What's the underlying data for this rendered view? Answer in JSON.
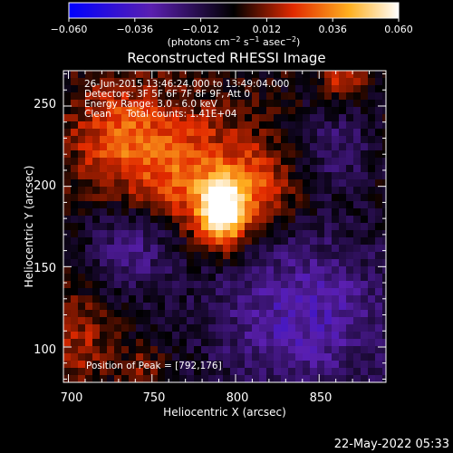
{
  "colorbar": {
    "ticks": [
      "−0.060",
      "−0.036",
      "−0.012",
      "0.012",
      "0.036",
      "0.060"
    ],
    "vmin": -0.06,
    "vmax": 0.06,
    "unit_prefix": "(photons cm",
    "unit_exp1": "−2",
    "unit_mid": " s",
    "unit_exp2": "−1",
    "unit_mid2": " asec",
    "unit_exp3": "−2",
    "unit_suffix": ")",
    "colors": [
      "#0000ff",
      "#6a1bb0",
      "#000000",
      "#e22a00",
      "#ffb020",
      "#ffffff"
    ]
  },
  "chart_data": {
    "type": "heatmap",
    "title": "Reconstructed RHESSI Image",
    "xlabel": "Heliocentric X (arcsec)",
    "ylabel": "Heliocentric Y (arcsec)",
    "xlim": [
      697,
      890
    ],
    "ylim": [
      78,
      272
    ],
    "xticks": [
      "700",
      "750",
      "800",
      "850"
    ],
    "yticks": [
      "100",
      "150",
      "200",
      "250"
    ],
    "peak_position": [
      792,
      176
    ],
    "annotations": [
      "26-Jun-2015 13:46:24.000 to 13:49:04.000",
      "Detectors: 3F 5F 6F 7F 8F 9F, Att 0",
      "Energy Range: 3.0 - 6.0 keV",
      "Clean     Total counts: 1.41E+04"
    ],
    "peak_label": "Position of Peak = [792,176]"
  },
  "timestamp": "22-May-2022 05:33"
}
